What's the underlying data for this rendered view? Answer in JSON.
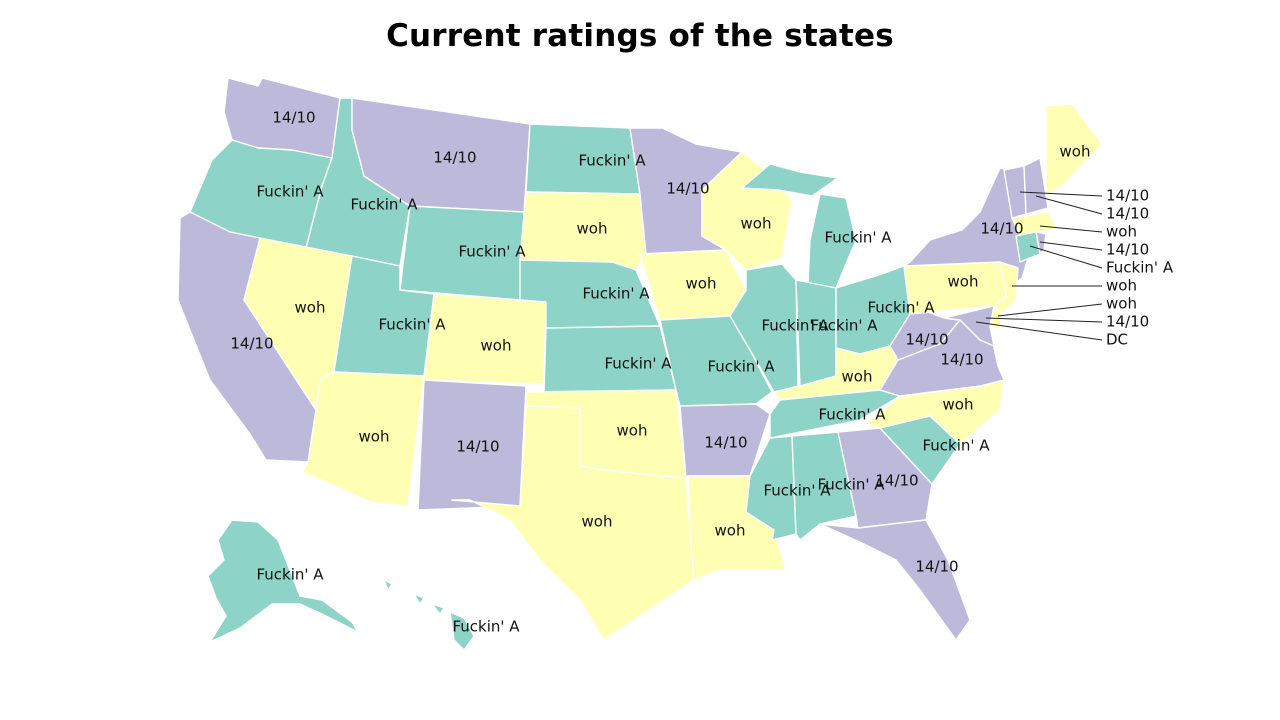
{
  "title": "Current ratings of the states",
  "legend_categories": [
    {
      "label": "14/10",
      "color": "#bcb9da"
    },
    {
      "label": "Fuckin' A",
      "color": "#8dd3c7"
    },
    {
      "label": "woh",
      "color": "#ffffb3"
    }
  ],
  "states": [
    {
      "id": "WA",
      "rating": "14/10",
      "label": "14/10"
    },
    {
      "id": "OR",
      "rating": "Fuckin' A",
      "label": "Fuckin' A"
    },
    {
      "id": "CA",
      "rating": "14/10",
      "label": "14/10"
    },
    {
      "id": "ID",
      "rating": "Fuckin' A",
      "label": "Fuckin' A"
    },
    {
      "id": "NV",
      "rating": "woh",
      "label": "woh"
    },
    {
      "id": "MT",
      "rating": "14/10",
      "label": "14/10"
    },
    {
      "id": "WY",
      "rating": "Fuckin' A",
      "label": "Fuckin' A"
    },
    {
      "id": "UT",
      "rating": "Fuckin' A",
      "label": "Fuckin' A"
    },
    {
      "id": "AZ",
      "rating": "woh",
      "label": "woh"
    },
    {
      "id": "CO",
      "rating": "woh",
      "label": "woh"
    },
    {
      "id": "NM",
      "rating": "14/10",
      "label": "14/10"
    },
    {
      "id": "ND",
      "rating": "Fuckin' A",
      "label": "Fuckin' A"
    },
    {
      "id": "SD",
      "rating": "woh",
      "label": "woh"
    },
    {
      "id": "NE",
      "rating": "Fuckin' A",
      "label": "Fuckin' A"
    },
    {
      "id": "KS",
      "rating": "Fuckin' A",
      "label": "Fuckin' A"
    },
    {
      "id": "OK",
      "rating": "woh",
      "label": "woh"
    },
    {
      "id": "TX",
      "rating": "woh",
      "label": "woh"
    },
    {
      "id": "MN",
      "rating": "14/10",
      "label": "14/10"
    },
    {
      "id": "IA",
      "rating": "woh",
      "label": "woh"
    },
    {
      "id": "MO",
      "rating": "Fuckin' A",
      "label": "Fuckin' A"
    },
    {
      "id": "AR",
      "rating": "14/10",
      "label": "14/10"
    },
    {
      "id": "LA",
      "rating": "woh",
      "label": "woh"
    },
    {
      "id": "WI",
      "rating": "woh",
      "label": "woh"
    },
    {
      "id": "IL",
      "rating": "Fuckin' A",
      "label": "Fuckin' A"
    },
    {
      "id": "MI",
      "rating": "Fuckin' A",
      "label": "Fuckin' A"
    },
    {
      "id": "IN",
      "rating": "Fuckin' A",
      "label": "Fuckin' A"
    },
    {
      "id": "OH",
      "rating": "Fuckin' A",
      "label": "Fuckin' A"
    },
    {
      "id": "KY",
      "rating": "woh",
      "label": "woh"
    },
    {
      "id": "TN",
      "rating": "Fuckin' A",
      "label": "Fuckin' A"
    },
    {
      "id": "MS",
      "rating": "Fuckin' A",
      "label": "Fuckin' A"
    },
    {
      "id": "AL",
      "rating": "Fuckin' A",
      "label": "Fuckin' A"
    },
    {
      "id": "GA",
      "rating": "14/10",
      "label": "14/10"
    },
    {
      "id": "FL",
      "rating": "14/10",
      "label": "14/10"
    },
    {
      "id": "SC",
      "rating": "Fuckin' A",
      "label": "Fuckin' A"
    },
    {
      "id": "NC",
      "rating": "woh",
      "label": "woh"
    },
    {
      "id": "VA",
      "rating": "14/10",
      "label": "14/10"
    },
    {
      "id": "WV",
      "rating": "14/10",
      "label": "14/10"
    },
    {
      "id": "PA",
      "rating": "woh",
      "label": "woh"
    },
    {
      "id": "NY",
      "rating": "14/10",
      "label": "14/10"
    },
    {
      "id": "ME",
      "rating": "woh",
      "label": "woh"
    },
    {
      "id": "AK",
      "rating": "Fuckin' A",
      "label": "Fuckin' A"
    },
    {
      "id": "HI",
      "rating": "Fuckin' A",
      "label": "Fuckin' A"
    },
    {
      "id": "NJ",
      "rating": "woh"
    },
    {
      "id": "DE",
      "rating": "woh"
    },
    {
      "id": "MD",
      "rating": "14/10"
    },
    {
      "id": "VT",
      "rating": "14/10"
    },
    {
      "id": "NH",
      "rating": "14/10"
    },
    {
      "id": "MA",
      "rating": "woh"
    },
    {
      "id": "RI",
      "rating": "14/10"
    },
    {
      "id": "CT",
      "rating": "Fuckin' A"
    }
  ],
  "callouts": [
    {
      "state": "VT",
      "label": "14/10"
    },
    {
      "state": "NH",
      "label": "14/10"
    },
    {
      "state": "MA",
      "label": "woh"
    },
    {
      "state": "RI",
      "label": "14/10"
    },
    {
      "state": "CT",
      "label": "Fuckin' A"
    },
    {
      "state": "NJ",
      "label": "woh"
    },
    {
      "state": "DE",
      "label": "woh"
    },
    {
      "state": "MD",
      "label": "14/10"
    },
    {
      "state": "DC",
      "label": "DC"
    }
  ]
}
